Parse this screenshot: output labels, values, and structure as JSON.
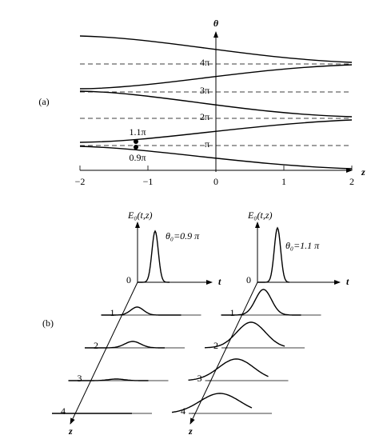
{
  "panel_a": {
    "label": "(a)",
    "y_axis_label": "θ",
    "x_axis_label": "z",
    "x_ticks": [
      "−2",
      "−1",
      "0",
      "1",
      "2"
    ],
    "y_levels": [
      "4π",
      "3π",
      "2π",
      "π"
    ],
    "point_labels": [
      "1.1π",
      "0.9π"
    ]
  },
  "panel_b": {
    "label": "(b)",
    "y_axis_label": "E₀(t,z)",
    "t_label": "t",
    "z_label": "z",
    "left": {
      "title": "θ₀=0.9 π",
      "z_labels": [
        "0",
        "1",
        "2",
        "3",
        "4"
      ]
    },
    "right": {
      "title": "θ₀=1.1 π",
      "z_labels": [
        "0",
        "1",
        "2",
        "3",
        "4"
      ]
    }
  }
}
